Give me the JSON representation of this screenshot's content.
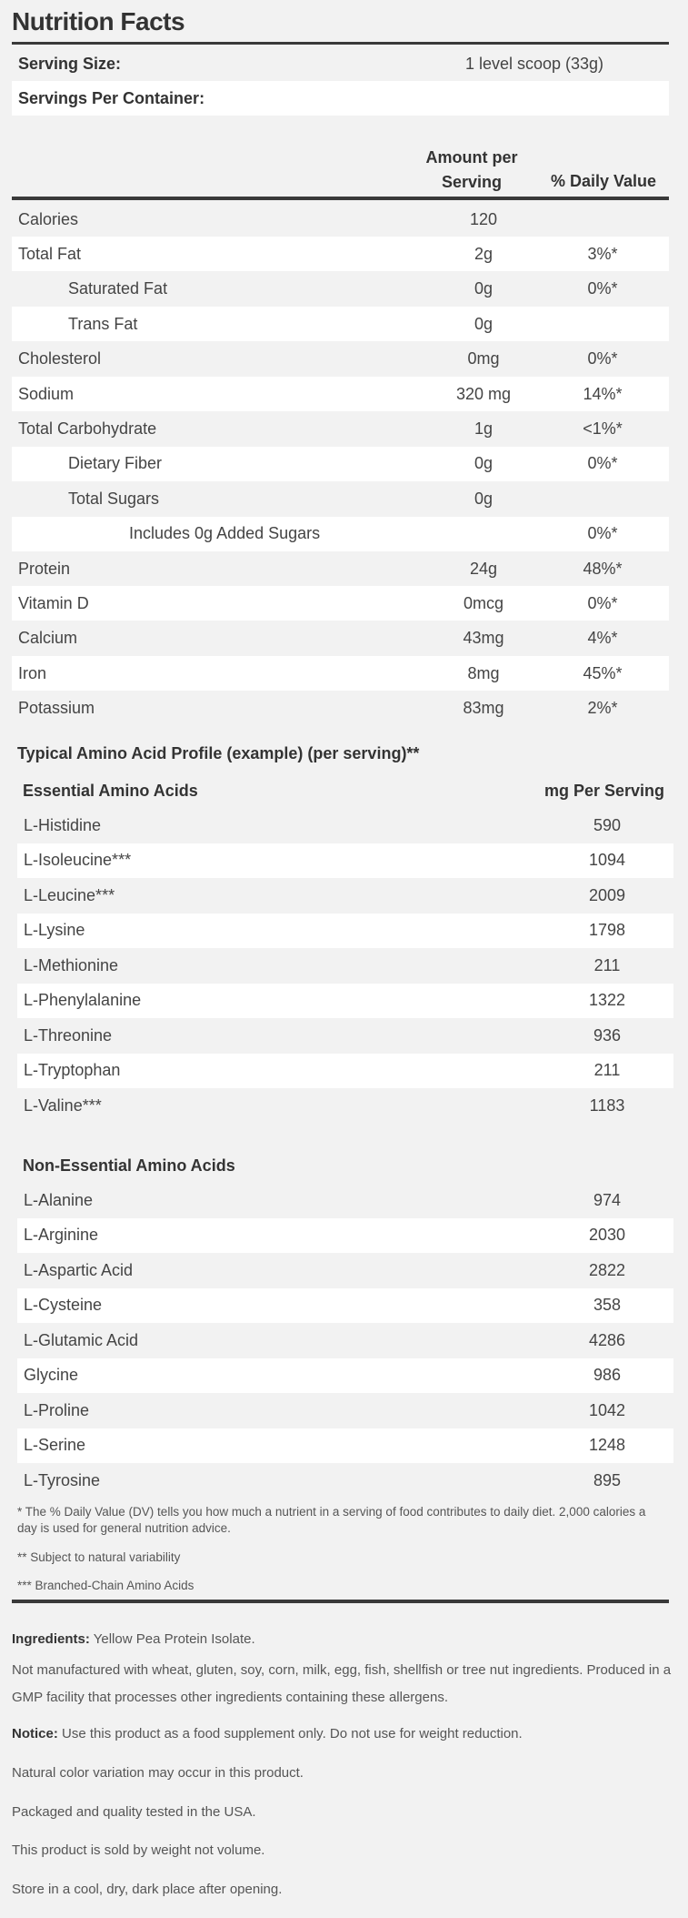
{
  "title": "Nutrition Facts",
  "serving_size": {
    "label": "Serving Size:",
    "value": "1 level scoop (33g)"
  },
  "servings_per_container": {
    "label": "Servings Per Container:",
    "value": ""
  },
  "columns": {
    "amount": "Amount per Serving",
    "dv": "% Daily Value"
  },
  "nutrients": [
    {
      "name": "Calories",
      "amount": "120",
      "dv": "",
      "indent": 0
    },
    {
      "name": "Total Fat",
      "amount": "2g",
      "dv": "3%*",
      "indent": 0
    },
    {
      "name": "Saturated Fat",
      "amount": "0g",
      "dv": "0%*",
      "indent": 1
    },
    {
      "name": "Trans Fat",
      "amount": "0g",
      "dv": "",
      "indent": 1
    },
    {
      "name": "Cholesterol",
      "amount": "0mg",
      "dv": "0%*",
      "indent": 0
    },
    {
      "name": "Sodium",
      "amount": "320 mg",
      "dv": "14%*",
      "indent": 0
    },
    {
      "name": "Total Carbohydrate",
      "amount": "1g",
      "dv": "<1%*",
      "indent": 0
    },
    {
      "name": "Dietary Fiber",
      "amount": "0g",
      "dv": "0%*",
      "indent": 1
    },
    {
      "name": "Total Sugars",
      "amount": "0g",
      "dv": "",
      "indent": 1
    },
    {
      "name": "Includes 0g Added Sugars",
      "amount": "",
      "dv": "0%*",
      "indent": 2
    },
    {
      "name": "Protein",
      "amount": "24g",
      "dv": "48%*",
      "indent": 0
    },
    {
      "name": "Vitamin D",
      "amount": "0mcg",
      "dv": "0%*",
      "indent": 0
    },
    {
      "name": "Calcium",
      "amount": "43mg",
      "dv": "4%*",
      "indent": 0
    },
    {
      "name": "Iron",
      "amount": "8mg",
      "dv": "45%*",
      "indent": 0
    },
    {
      "name": "Potassium",
      "amount": "83mg",
      "dv": "2%*",
      "indent": 0
    }
  ],
  "amino": {
    "title": "Typical Amino Acid Profile (example) (per serving)**",
    "essential_header": "Essential Amino Acids",
    "mg_header": "mg Per Serving",
    "essential": [
      {
        "name": "L-Histidine",
        "mg": "590"
      },
      {
        "name": "L-Isoleucine***",
        "mg": "1094"
      },
      {
        "name": "L-Leucine***",
        "mg": "2009"
      },
      {
        "name": "L-Lysine",
        "mg": "1798"
      },
      {
        "name": "L-Methionine",
        "mg": "211"
      },
      {
        "name": "L-Phenylalanine",
        "mg": "1322"
      },
      {
        "name": "L-Threonine",
        "mg": "936"
      },
      {
        "name": "L-Tryptophan",
        "mg": "211"
      },
      {
        "name": "L-Valine***",
        "mg": "1183"
      }
    ],
    "nonessential_header": "Non-Essential Amino Acids",
    "nonessential": [
      {
        "name": "L-Alanine",
        "mg": "974"
      },
      {
        "name": "L-Arginine",
        "mg": "2030"
      },
      {
        "name": "L-Aspartic Acid",
        "mg": "2822"
      },
      {
        "name": "L-Cysteine",
        "mg": "358"
      },
      {
        "name": "L-Glutamic Acid",
        "mg": "4286"
      },
      {
        "name": "Glycine",
        "mg": "986"
      },
      {
        "name": "L-Proline",
        "mg": "1042"
      },
      {
        "name": "L-Serine",
        "mg": "1248"
      },
      {
        "name": "L-Tyrosine",
        "mg": "895"
      }
    ]
  },
  "footnotes": [
    "* The % Daily Value (DV) tells you how much a nutrient in a serving of food contributes to daily diet. 2,000 calories a day is used for general nutrition advice.",
    "** Subject to natural variability",
    "*** Branched-Chain Amino Acids"
  ],
  "info": {
    "ingredients_label": "Ingredients:",
    "ingredients": " Yellow Pea Protein Isolate.",
    "allergens": "Not manufactured with wheat, gluten, soy, corn, milk, egg, fish, shellfish or tree nut ingredients. Produced in a GMP facility that processes other ingredients containing these allergens.",
    "notice_label": "Notice:",
    "notice": " Use this product as a food supplement only. Do not use for weight reduction.",
    "color": "Natural color variation may occur in this product.",
    "packaged": "Packaged and quality tested in the USA.",
    "weight": "This product is sold by weight not volume.",
    "storage": "Store in a cool, dry, dark place after opening."
  }
}
